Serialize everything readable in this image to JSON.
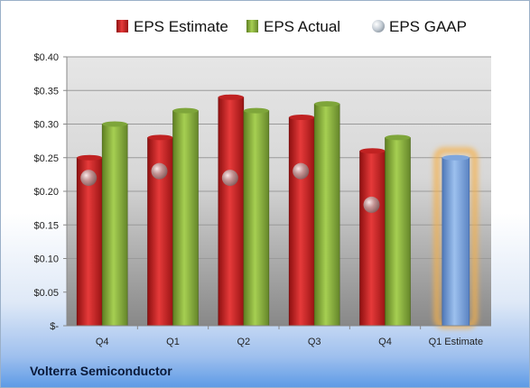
{
  "company": "Volterra Semiconductor",
  "legend": [
    {
      "label": "EPS Estimate",
      "color": "#d42a2a"
    },
    {
      "label": "EPS Actual",
      "color": "#8ab33c"
    },
    {
      "label": "EPS GAAP",
      "color": "#b8c2cc"
    }
  ],
  "chart_data": {
    "type": "bar",
    "categories": [
      "Q4",
      "Q1",
      "Q2",
      "Q3",
      "Q4",
      "Q1 Estimate"
    ],
    "series": [
      {
        "name": "EPS Estimate",
        "values": [
          0.25,
          0.28,
          0.34,
          0.31,
          0.26,
          null
        ]
      },
      {
        "name": "EPS Actual",
        "values": [
          0.3,
          0.32,
          0.32,
          0.33,
          0.28,
          null
        ]
      },
      {
        "name": "EPS GAAP",
        "marker": "sphere",
        "values": [
          0.22,
          0.23,
          0.22,
          0.23,
          0.18,
          null
        ]
      }
    ],
    "highlight": {
      "category": "Q1 Estimate",
      "value": 0.25,
      "color": "#6f9ad6",
      "glow": "#f6b04a"
    },
    "ylim": [
      0,
      0.4
    ],
    "yticks": [
      0,
      0.05,
      0.1,
      0.15,
      0.2,
      0.25,
      0.3,
      0.35,
      0.4
    ],
    "ytick_labels": [
      "$-",
      "$0.05",
      "$0.10",
      "$0.15",
      "$0.20",
      "$0.25",
      "$0.30",
      "$0.35",
      "$0.40"
    ],
    "grid": true,
    "legend_position": "top"
  }
}
